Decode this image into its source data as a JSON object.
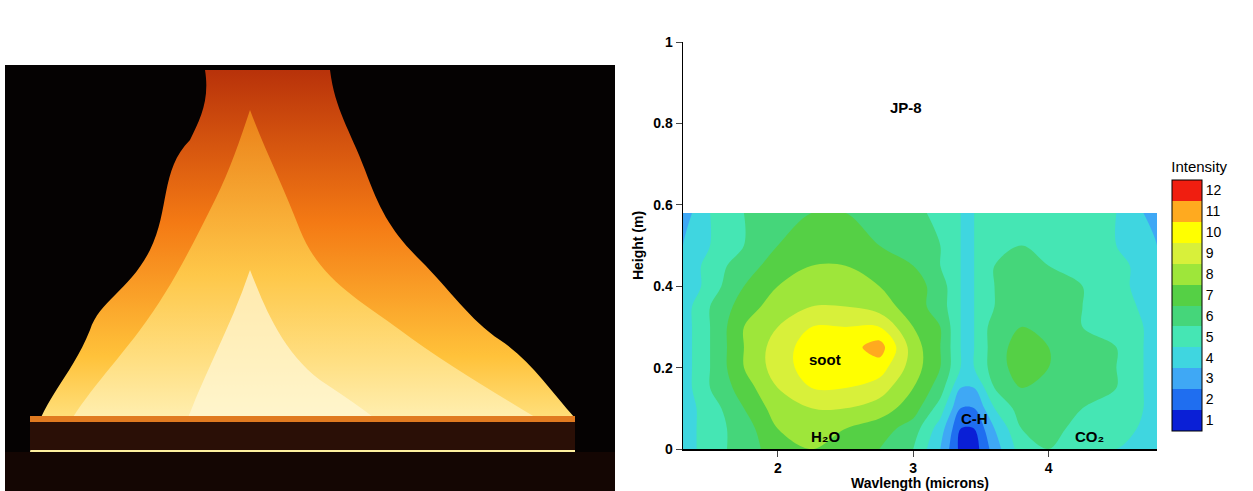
{
  "chart_data": {
    "type": "contour",
    "xlabel": "Wavlength (microns)",
    "ylabel": "Height (m)",
    "xlim": [
      1.3,
      4.8
    ],
    "xticks": [
      2,
      3,
      4
    ],
    "ylim": [
      0,
      1
    ],
    "yticks": [
      0,
      0.2,
      0.4,
      0.6,
      0.8,
      1
    ],
    "grid": false,
    "x": [
      1.3,
      1.5,
      1.75,
      2.0,
      2.25,
      2.5,
      2.75,
      3.0,
      3.2,
      3.35,
      3.45,
      3.6,
      3.8,
      4.0,
      4.25,
      4.5,
      4.8
    ],
    "y": [
      0,
      0.05,
      0.1,
      0.15,
      0.2,
      0.25,
      0.3,
      0.35,
      0.4,
      0.45,
      0.5,
      0.58
    ],
    "z": [
      [
        4,
        5,
        6,
        7,
        7.5,
        7,
        6.5,
        5.5,
        3.5,
        1.2,
        1.0,
        3,
        5,
        5.5,
        4.5,
        4.5,
        3.5
      ],
      [
        4,
        5,
        6,
        7.5,
        8,
        7.5,
        7,
        6,
        4,
        1.5,
        1.5,
        3.5,
        5.5,
        6,
        5,
        5,
        4
      ],
      [
        4,
        5,
        6.5,
        8,
        8.5,
        8.5,
        8,
        7,
        5,
        2.5,
        2.5,
        4.5,
        6,
        6,
        5.5,
        5.5,
        4
      ],
      [
        4,
        5.5,
        7,
        8.5,
        9.5,
        9.5,
        9,
        7.5,
        6,
        3.5,
        3.5,
        5.5,
        6.5,
        6.5,
        6,
        5.5,
        4
      ],
      [
        4,
        5.5,
        7.5,
        9,
        10,
        10,
        10,
        8,
        6.5,
        4.5,
        4.5,
        6,
        7,
        6.5,
        6,
        5.5,
        4
      ],
      [
        4,
        5.5,
        7.5,
        9,
        10,
        10,
        11,
        8,
        6.5,
        4.5,
        4.5,
        6,
        7,
        6.5,
        6,
        5.5,
        4
      ],
      [
        4,
        5.5,
        7.5,
        8.5,
        9.5,
        9.5,
        9.5,
        7.5,
        6.5,
        4.5,
        4.5,
        6,
        6.5,
        6.5,
        5.5,
        5.5,
        4
      ],
      [
        4,
        5.5,
        7,
        8,
        8.5,
        8.5,
        8,
        7,
        6,
        4.5,
        4.5,
        5.5,
        6.5,
        6,
        5.5,
        5,
        4
      ],
      [
        3.5,
        5,
        6.5,
        7.5,
        8.5,
        8,
        7.5,
        7,
        6,
        4.5,
        4.5,
        5.5,
        6,
        6,
        5.5,
        5,
        3.5
      ],
      [
        3.5,
        5,
        6,
        7,
        7.5,
        7.5,
        7,
        6.5,
        5.5,
        4.5,
        4.5,
        5.5,
        6,
        5.5,
        5,
        5,
        3.5
      ],
      [
        3.5,
        4.5,
        5.5,
        6.5,
        7,
        7,
        6.5,
        6,
        5.5,
        4.5,
        4.5,
        5.5,
        5.5,
        5.5,
        5,
        4.5,
        3.5
      ],
      [
        3,
        4.5,
        5.5,
        6,
        6.5,
        6.5,
        6,
        6,
        5,
        4.5,
        4.5,
        5,
        5.5,
        5,
        5,
        4.5,
        3
      ]
    ],
    "colorbar": {
      "title": "Intensity",
      "range": [
        0.5,
        12.5
      ],
      "ticks": [
        1,
        2,
        3,
        4,
        5,
        6,
        7,
        8,
        9,
        10,
        11,
        12
      ],
      "colors": [
        "#0a1fd6",
        "#1f6ef0",
        "#3fa8f5",
        "#3fd6e0",
        "#45e6b4",
        "#45d67a",
        "#55d045",
        "#9ee63a",
        "#d8f03a",
        "#ffff00",
        "#ffaa1f",
        "#f01e10"
      ]
    },
    "annotations": [
      {
        "text": "JP-8",
        "x": 2.95,
        "y": 0.84
      },
      {
        "text": "soot",
        "x": 2.35,
        "y": 0.22
      },
      {
        "text": "H₂O",
        "x": 2.35,
        "y": 0.03
      },
      {
        "text": "C-H",
        "x": 3.45,
        "y": 0.075
      },
      {
        "text": "CO₂",
        "x": 4.3,
        "y": 0.03
      }
    ]
  }
}
